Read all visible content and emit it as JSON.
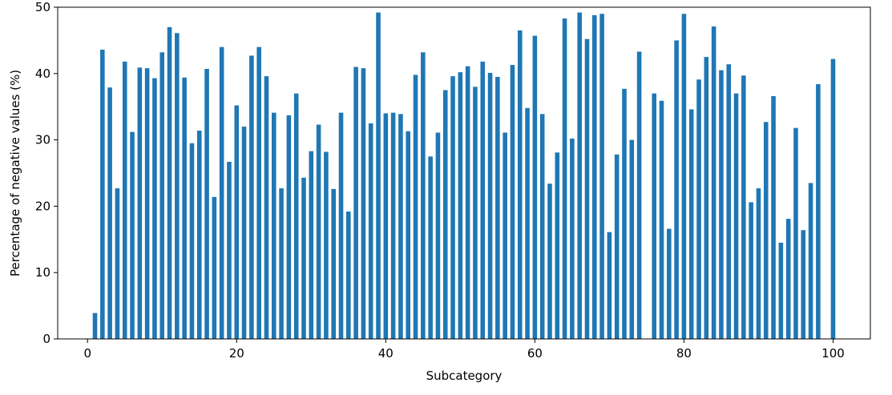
{
  "chart_data": {
    "type": "bar",
    "title": "",
    "xlabel": "Subcategory",
    "ylabel": "Percentage of negative values (%)",
    "xlim": [
      -4,
      105
    ],
    "ylim": [
      0,
      50
    ],
    "xticks": [
      0,
      20,
      40,
      60,
      80,
      100
    ],
    "yticks": [
      0,
      10,
      20,
      30,
      40,
      50
    ],
    "grid": false,
    "legend": "none",
    "bar_color": "#1f77b4",
    "x": [
      1,
      2,
      3,
      4,
      5,
      6,
      7,
      8,
      9,
      10,
      11,
      12,
      13,
      14,
      15,
      16,
      17,
      18,
      19,
      20,
      21,
      22,
      23,
      24,
      25,
      26,
      27,
      28,
      29,
      30,
      31,
      32,
      33,
      34,
      35,
      36,
      37,
      38,
      39,
      40,
      41,
      42,
      43,
      44,
      45,
      46,
      47,
      48,
      49,
      50,
      51,
      52,
      53,
      54,
      55,
      56,
      57,
      58,
      59,
      60,
      61,
      62,
      63,
      64,
      65,
      66,
      67,
      68,
      69,
      70,
      71,
      72,
      73,
      74,
      75,
      76,
      77,
      78,
      79,
      80,
      81,
      82,
      83,
      84,
      85,
      86,
      87,
      88,
      89,
      90,
      91,
      92,
      93,
      94,
      95,
      96,
      97,
      98,
      99,
      100
    ],
    "values": [
      3.9,
      43.6,
      37.9,
      22.7,
      41.8,
      31.2,
      40.9,
      40.8,
      39.3,
      43.2,
      47.0,
      46.1,
      39.4,
      29.5,
      31.4,
      40.7,
      21.4,
      44.0,
      26.7,
      35.2,
      32.0,
      42.7,
      44.0,
      39.6,
      34.1,
      22.7,
      33.7,
      37.0,
      24.3,
      28.3,
      32.3,
      28.2,
      22.6,
      34.1,
      19.2,
      41.0,
      40.8,
      32.5,
      49.2,
      34.0,
      34.1,
      33.9,
      31.3,
      39.8,
      43.2,
      27.5,
      31.1,
      37.5,
      39.6,
      40.2,
      41.1,
      38.0,
      41.8,
      40.1,
      39.5,
      31.1,
      41.3,
      46.5,
      34.8,
      45.7,
      33.9,
      23.4,
      28.1,
      48.3,
      30.2,
      49.2,
      45.2,
      48.8,
      49.0,
      16.1,
      27.8,
      37.7,
      30.0,
      43.3,
      0.0,
      37.0,
      35.9,
      16.6,
      45.0,
      49.0,
      34.6,
      39.1,
      42.5,
      47.1,
      40.5,
      41.4,
      37.0,
      39.7,
      20.6,
      22.7,
      32.7,
      36.6,
      14.5,
      18.1,
      31.8,
      16.4,
      23.5,
      38.4,
      0.0,
      42.2
    ]
  }
}
